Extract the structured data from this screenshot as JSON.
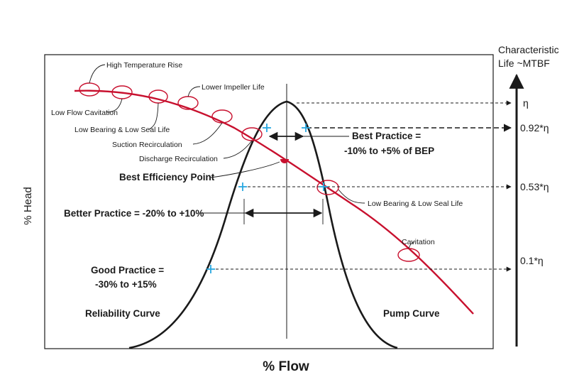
{
  "axes": {
    "x_title": "% Flow",
    "y_title": "% Head",
    "right_title_line1": "Characteristic",
    "right_title_line2": "Life ~MTBF"
  },
  "right_ticks": [
    {
      "label": "η"
    },
    {
      "label": "0.92*η"
    },
    {
      "label": "0.53*η"
    },
    {
      "label": "0.1*η"
    }
  ],
  "problem_labels": [
    "High Temperature Rise",
    "Lower Impeller Life",
    "Low Flow Cavitation",
    "Low Bearing & Low Seal Life",
    "Suction Recirculation",
    "Discharge Recirculation",
    "Low Bearing & Low Seal Life",
    "Cavitation"
  ],
  "practice": {
    "bep": "Best Efficiency Point",
    "best_line1": "Best Practice =",
    "best_line2": "-10% to +5% of BEP",
    "better": "Better Practice = -20% to +10%",
    "good_line1": "Good Practice =",
    "good_line2": "-30% to +15%"
  },
  "curves": {
    "reliability": "Reliability Curve",
    "pump": "Pump Curve"
  },
  "colors": {
    "pump_curve": "#c8102e",
    "tick_marks": "#29a8e0",
    "ink": "#1a1a1a"
  }
}
